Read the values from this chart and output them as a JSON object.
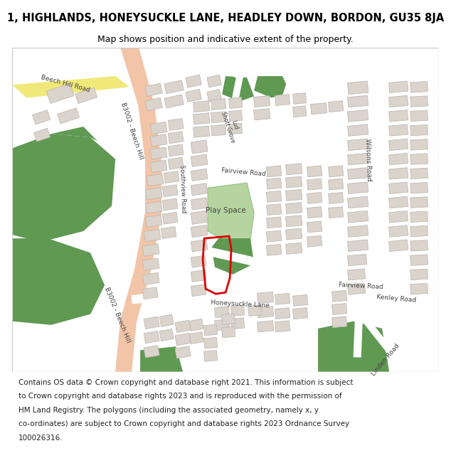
{
  "title_line1": "1, HIGHLANDS, HONEYSUCKLE LANE, HEADLEY DOWN, BORDON, GU35 8JA",
  "title_line2": "Map shows position and indicative extent of the property.",
  "bg_color": "#f7f5f2",
  "road_color": "#ffffff",
  "major_road_color": "#f2c4a8",
  "yellow_road_color": "#f0e878",
  "green_dark": "#5f9952",
  "green_light": "#b5d4a0",
  "building_color": "#dbd4cc",
  "building_edge": "#bbb4ac",
  "plot_red": "#dd0000",
  "plot_lw": 2.0,
  "label_color": "#444444",
  "title_fs": 10.5,
  "subtitle_fs": 9.0,
  "footer_fs": 7.5,
  "map_border_color": "#cccccc"
}
